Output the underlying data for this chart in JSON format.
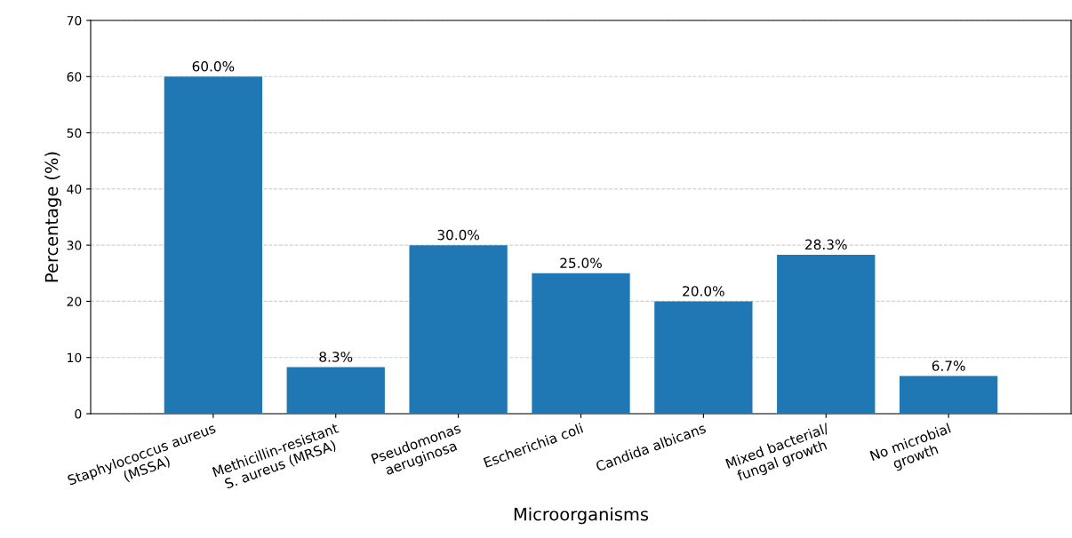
{
  "chart_data": {
    "type": "bar",
    "xlabel": "Microorganisms",
    "ylabel": "Percentage (%)",
    "categories": [
      "Staphylococcus aureus\n(MSSA)",
      "Methicillin-resistant\nS. aureus (MRSA)",
      "Pseudomonas\naeruginosa",
      "Escherichia coli",
      "Candida albicans",
      "Mixed bacterial/\nfungal growth",
      "No microbial\ngrowth"
    ],
    "values": [
      60.0,
      8.3,
      30.0,
      25.0,
      20.0,
      28.3,
      6.7
    ],
    "value_labels": [
      "60.0%",
      "8.3%",
      "30.0%",
      "25.0%",
      "20.0%",
      "28.3%",
      "6.7%"
    ],
    "color": "#1f77b4",
    "ylim": [
      0,
      70
    ],
    "yticks": [
      0,
      10,
      20,
      30,
      40,
      50,
      60,
      70
    ],
    "grid": "y"
  }
}
